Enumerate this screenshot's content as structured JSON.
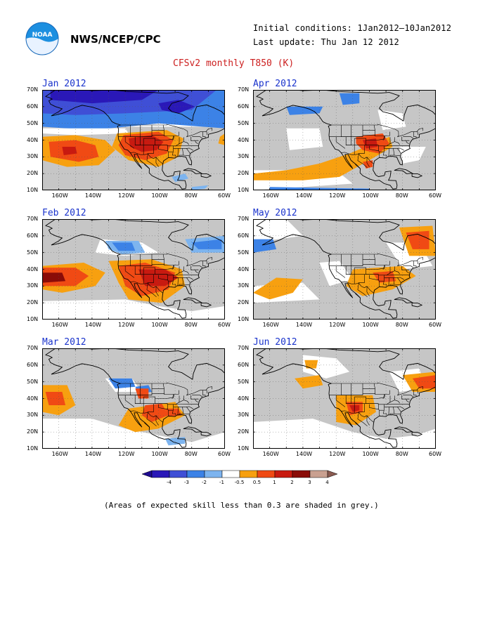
{
  "header": {
    "org": "NWS/NCEP/CPC",
    "initial_conditions": "Initial conditions: 1Jan2012–10Jan2012",
    "last_update": "Last update: Thu Jan 12 2012",
    "title": "CFSv2 monthly T850 (K)"
  },
  "logo": {
    "text": "NOAA"
  },
  "panels": [
    {
      "id": "jan",
      "title": "Jan 2012"
    },
    {
      "id": "apr",
      "title": "Apr 2012"
    },
    {
      "id": "feb",
      "title": "Feb 2012"
    },
    {
      "id": "may",
      "title": "May 2012"
    },
    {
      "id": "mar",
      "title": "Mar 2012"
    },
    {
      "id": "jun",
      "title": "Jun 2012"
    }
  ],
  "axes": {
    "lat_labels": [
      "70N",
      "60N",
      "50N",
      "40N",
      "30N",
      "20N",
      "10N"
    ],
    "lon_labels": [
      "160W",
      "140W",
      "120W",
      "100W",
      "80W",
      "60W"
    ]
  },
  "colorbar": {
    "labels": [
      "-4",
      "-3",
      "-2",
      "-1",
      "-0.5",
      "0.5",
      "1",
      "2",
      "3",
      "4"
    ],
    "colors": [
      "#2a18b8",
      "#3f4fd6",
      "#3c82e6",
      "#7db4ef",
      "#ffffff",
      "#f7a010",
      "#f04a14",
      "#c81a10",
      "#8a0c08",
      "#c9a090"
    ]
  },
  "palette": {
    "grey": "#c6c6c6",
    "land": "#c6c6c6",
    "ocean": "#ffffff"
  },
  "footnote": "(Areas of expected skill less than 0.3 are shaded in grey.)"
}
